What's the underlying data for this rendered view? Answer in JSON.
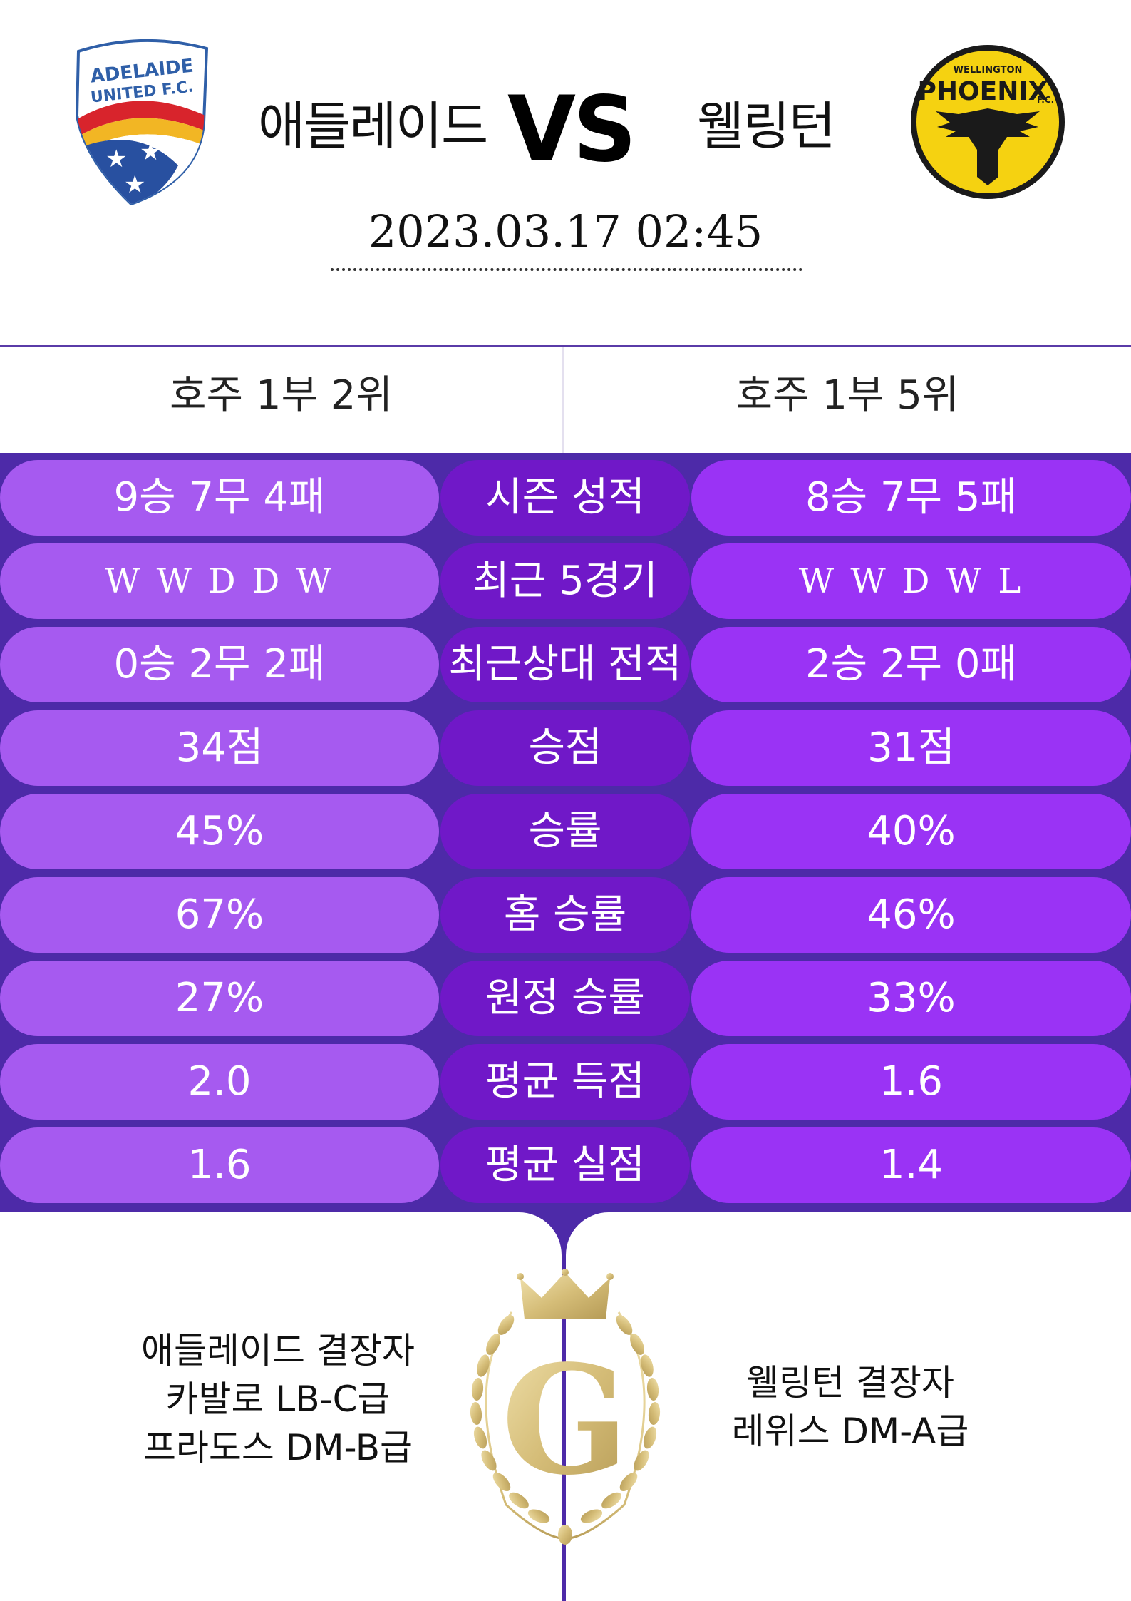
{
  "match": {
    "home_team": "애들레이드",
    "away_team": "웰링턴",
    "vs_label": "VS",
    "datetime": "2023.03.17  02:45",
    "home_logo_text": [
      "ADELAIDE",
      "UNITED F.C."
    ],
    "away_logo_text": [
      "WELLINGTON",
      "PHOENIX",
      "F.C."
    ]
  },
  "ranks": {
    "home": "호주 1부 2위",
    "away": "호주 1부 5위"
  },
  "stats": [
    {
      "label": "시즌 성적",
      "home": "9승 7무 4패",
      "away": "8승 7무 5패"
    },
    {
      "label": "최근 5경기",
      "home": "W W D D W",
      "away": "W W D W L"
    },
    {
      "label": "최근상대 전적",
      "home": "0승 2무 2패",
      "away": "2승 2무 0패"
    },
    {
      "label": "승점",
      "home": "34점",
      "away": "31점"
    },
    {
      "label": "승률",
      "home": "45%",
      "away": "40%"
    },
    {
      "label": "홈 승률",
      "home": "67%",
      "away": "46%"
    },
    {
      "label": "원정 승률",
      "home": "27%",
      "away": "33%"
    },
    {
      "label": "평균 득점",
      "home": "2.0",
      "away": "1.6"
    },
    {
      "label": "평균 실점",
      "home": "1.6",
      "away": "1.4"
    }
  ],
  "absentees": {
    "home": [
      "애들레이드 결장자",
      "카발로 LB-C급",
      "프라도스 DM-B급"
    ],
    "away": [
      "웰링턴 결장자",
      "레위스 DM-A급"
    ]
  },
  "emblem_letter": "G",
  "colors": {
    "stats_background": "#4d2aa8",
    "home_pill": "#a65af0",
    "mid_pill": "#7018c8",
    "away_pill": "#9a33f5",
    "gold": "#d8c48a"
  }
}
